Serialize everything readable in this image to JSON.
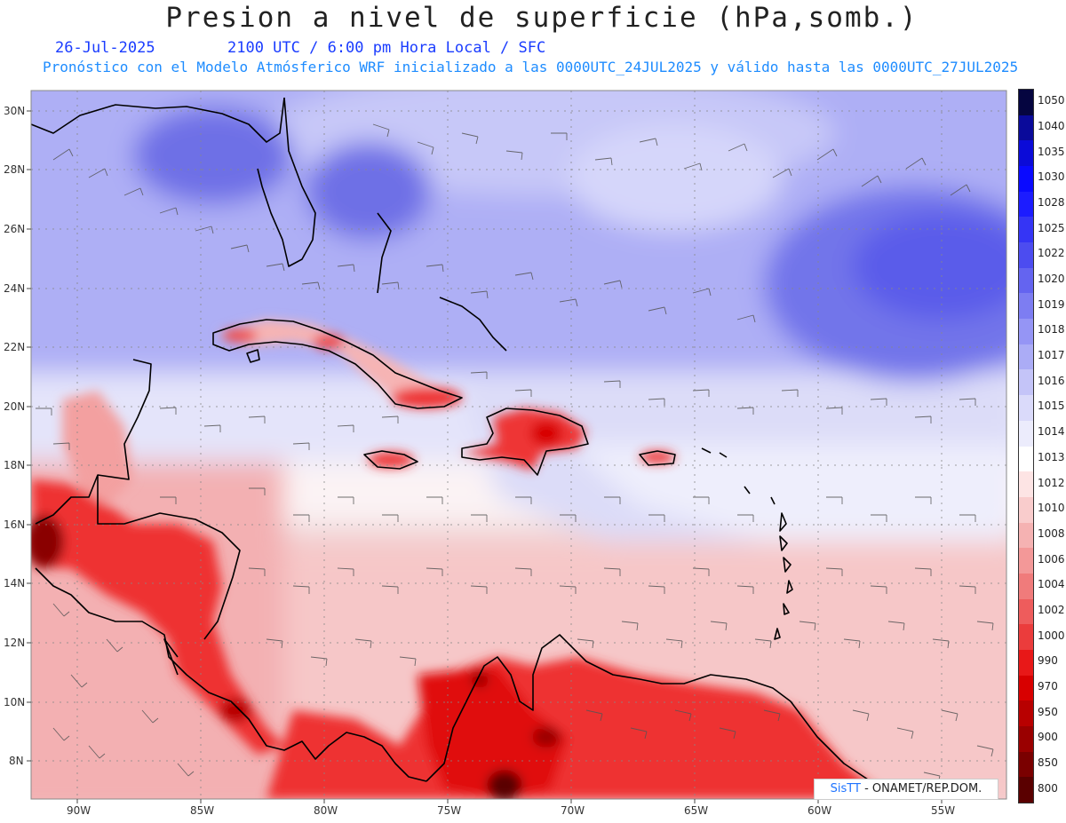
{
  "header": {
    "title": "Presion a nivel de superficie (hPa,somb.)",
    "date": "26-Jul-2025",
    "time_line": "2100 UTC / 6:00 pm Hora Local / SFC",
    "forecast_line": "Pronóstico con el Modelo Atmósferico WRF inicializado a las 0000UTC_24JUL2025 y válido hasta las  0000UTC_27JUL2025"
  },
  "map": {
    "lat_labels": [
      "30N",
      "28N",
      "26N",
      "24N",
      "22N",
      "20N",
      "18N",
      "16N",
      "14N",
      "12N",
      "10N",
      "8N"
    ],
    "lon_labels": [
      "90W",
      "85W",
      "80W",
      "75W",
      "70W",
      "65W",
      "60W",
      "55W"
    ]
  },
  "credit": {
    "brand": "SisTT",
    "org": " - ONAMET/REP.DOM."
  },
  "legend": {
    "levels": [
      "1050",
      "1040",
      "1035",
      "1030",
      "1028",
      "1025",
      "1022",
      "1020",
      "1019",
      "1018",
      "1017",
      "1016",
      "1015",
      "1014",
      "1013",
      "1012",
      "1010",
      "1008",
      "1006",
      "1004",
      "1002",
      "1000",
      "990",
      "970",
      "950",
      "900",
      "850",
      "800"
    ],
    "colors": [
      "#050540",
      "#0a0a9a",
      "#0b0bd8",
      "#0a0aff",
      "#1c1cff",
      "#3535f5",
      "#4c4cf0",
      "#6464f0",
      "#7d7df2",
      "#9595f5",
      "#abacf6",
      "#c4c4f8",
      "#dadafa",
      "#ececfc",
      "#ffffff",
      "#fde4e4",
      "#f9cccc",
      "#f5b2b2",
      "#f39898",
      "#f07b7b",
      "#ee5c5c",
      "#eb3c3c",
      "#e81818",
      "#d80000",
      "#b80000",
      "#9a0000",
      "#7a0000",
      "#5a0000"
    ]
  }
}
